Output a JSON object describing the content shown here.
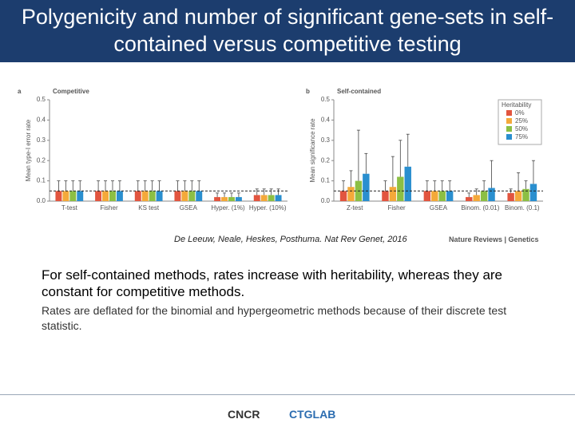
{
  "slide": {
    "title": "Polygenicity and number of significant gene-sets in self-contained versus competitive testing",
    "citation": "De Leeuw, Neale, Heskes, Posthuma. Nat Rev Genet, 2016",
    "source": "Nature Reviews | Genetics",
    "body": "For self-contained methods, rates increase with heritability, whereas they are constant for competitive methods.",
    "note": "Rates are deflated for the binomial and hypergeometric methods because of their discrete test statistic.",
    "logos": [
      "CNCR",
      "CTGLAB"
    ]
  },
  "chart_data": [
    {
      "type": "bar",
      "panel": "a",
      "title": "Competitive",
      "y_label": "Mean type-I error rate",
      "categories": [
        "T-test",
        "Fisher",
        "KS test",
        "GSEA",
        "Hyper. (1%)",
        "Hyper. (10%)"
      ],
      "series": [
        {
          "name": "0%",
          "color": "#e2553f",
          "values": [
            0.05,
            0.05,
            0.05,
            0.05,
            0.02,
            0.03
          ],
          "errors": [
            0.05,
            0.05,
            0.05,
            0.05,
            0.02,
            0.03
          ]
        },
        {
          "name": "25%",
          "color": "#f4a93a",
          "values": [
            0.05,
            0.05,
            0.05,
            0.05,
            0.02,
            0.03
          ],
          "errors": [
            0.05,
            0.05,
            0.05,
            0.05,
            0.02,
            0.03
          ]
        },
        {
          "name": "50%",
          "color": "#8cbf44",
          "values": [
            0.05,
            0.05,
            0.05,
            0.05,
            0.02,
            0.03
          ],
          "errors": [
            0.05,
            0.05,
            0.05,
            0.05,
            0.02,
            0.03
          ]
        },
        {
          "name": "75%",
          "color": "#2a8fcf",
          "values": [
            0.05,
            0.05,
            0.05,
            0.05,
            0.02,
            0.03
          ],
          "errors": [
            0.05,
            0.05,
            0.05,
            0.05,
            0.02,
            0.03
          ]
        }
      ],
      "ylim": [
        0,
        0.5
      ],
      "yticks": [
        {
          "value": 0,
          "label": "0.0"
        },
        0.1,
        0.2,
        0.3,
        0.4,
        0.5
      ],
      "hline": 0.05
    },
    {
      "type": "bar",
      "panel": "b",
      "title": "Self-contained",
      "y_label": "Mean significance rate",
      "categories": [
        "Z-test",
        "Fisher",
        "GSEA",
        "Binom. (0.01)",
        "Binom. (0.1)"
      ],
      "series": [
        {
          "name": "0%",
          "color": "#e2553f",
          "values": [
            0.05,
            0.05,
            0.05,
            0.02,
            0.04
          ],
          "errors": [
            0.05,
            0.05,
            0.05,
            0.02,
            0.02
          ]
        },
        {
          "name": "25%",
          "color": "#f4a93a",
          "values": [
            0.07,
            0.07,
            0.05,
            0.03,
            0.05
          ],
          "errors": [
            0.08,
            0.15,
            0.05,
            0.03,
            0.09
          ]
        },
        {
          "name": "50%",
          "color": "#8cbf44",
          "values": [
            0.1,
            0.12,
            0.05,
            0.05,
            0.06
          ],
          "errors": [
            0.25,
            0.18,
            0.05,
            0.05,
            0.04
          ]
        },
        {
          "name": "75%",
          "color": "#2a8fcf",
          "values": [
            0.135,
            0.17,
            0.05,
            0.065,
            0.085
          ],
          "errors": [
            0.1,
            0.16,
            0.05,
            0.135,
            0.115
          ]
        }
      ],
      "ylim": [
        0,
        0.5
      ],
      "yticks": [
        {
          "value": 0,
          "label": "0.0"
        },
        0.1,
        0.2,
        0.3,
        0.4,
        0.5
      ],
      "hline": 0.05,
      "legend_title": "Heritability",
      "legend": "upper right"
    }
  ]
}
